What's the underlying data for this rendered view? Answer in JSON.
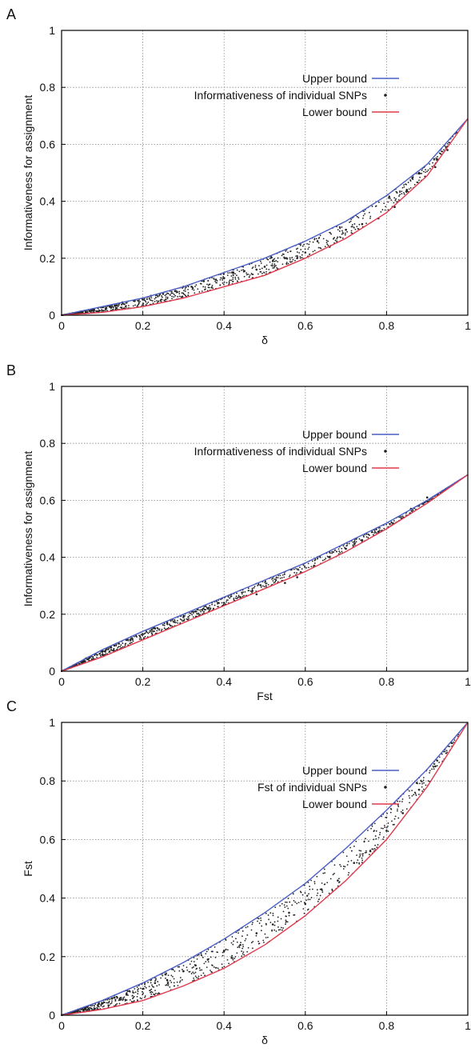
{
  "figure": {
    "colors": {
      "upper": "#4a5fc4",
      "lower": "#e03a4c",
      "points": "#222222",
      "grid": "#8a8a8a",
      "axis": "#000000"
    }
  },
  "chart_data": [
    {
      "panel": "A",
      "type": "scatter",
      "xlabel": "δ",
      "ylabel": "Informativeness for assignment",
      "xlim": [
        0,
        1
      ],
      "ylim": [
        0,
        1
      ],
      "xticks": [
        0,
        0.2,
        0.4,
        0.6,
        0.8,
        1
      ],
      "yticks": [
        0,
        0.2,
        0.4,
        0.6,
        0.8,
        1
      ],
      "xticklabels": [
        "0",
        "0.2",
        "0.4",
        "0.6",
        "0.8",
        "1"
      ],
      "yticklabels": [
        "0",
        "0.2",
        "0.4",
        "0.6",
        "0.8",
        "1"
      ],
      "grid": true,
      "legend_position": "top-right",
      "series": [
        {
          "name": "Upper bound",
          "kind": "line",
          "color": "#4a5fc4",
          "x": [
            0,
            0.1,
            0.2,
            0.3,
            0.4,
            0.5,
            0.6,
            0.7,
            0.8,
            0.9,
            1.0
          ],
          "y": [
            0,
            0.03,
            0.06,
            0.1,
            0.15,
            0.2,
            0.26,
            0.33,
            0.42,
            0.53,
            0.69
          ]
        },
        {
          "name": "Informativeness of individual SNPs",
          "kind": "points",
          "color": "#222222",
          "x": [
            0.02,
            0.05,
            0.08,
            0.1,
            0.12,
            0.15,
            0.18,
            0.2,
            0.22,
            0.25,
            0.28,
            0.3,
            0.32,
            0.35,
            0.38,
            0.4,
            0.42,
            0.45,
            0.48,
            0.5,
            0.52,
            0.55,
            0.58,
            0.6,
            0.63,
            0.66,
            0.7,
            0.74,
            0.78,
            0.82,
            0.85,
            0.88,
            0.92,
            0.95
          ],
          "y": [
            0.005,
            0.012,
            0.02,
            0.028,
            0.03,
            0.045,
            0.05,
            0.055,
            0.068,
            0.075,
            0.085,
            0.1,
            0.1,
            0.12,
            0.125,
            0.13,
            0.15,
            0.155,
            0.16,
            0.17,
            0.19,
            0.2,
            0.2,
            0.22,
            0.26,
            0.24,
            0.3,
            0.32,
            0.34,
            0.38,
            0.44,
            0.5,
            0.52,
            0.58
          ]
        },
        {
          "name": "Lower bound",
          "kind": "line",
          "color": "#e03a4c",
          "x": [
            0,
            0.1,
            0.2,
            0.3,
            0.4,
            0.5,
            0.6,
            0.7,
            0.8,
            0.9,
            1.0
          ],
          "y": [
            0,
            0.01,
            0.03,
            0.06,
            0.1,
            0.14,
            0.2,
            0.27,
            0.36,
            0.49,
            0.69
          ]
        }
      ]
    },
    {
      "panel": "B",
      "type": "scatter",
      "xlabel": "Fst",
      "ylabel": "Informativeness for assignment",
      "xlim": [
        0,
        1
      ],
      "ylim": [
        0,
        1
      ],
      "xticks": [
        0,
        0.2,
        0.4,
        0.6,
        0.8,
        1
      ],
      "yticks": [
        0,
        0.2,
        0.4,
        0.6,
        0.8,
        1
      ],
      "xticklabels": [
        "0",
        "0.2",
        "0.4",
        "0.6",
        "0.8",
        "1"
      ],
      "yticklabels": [
        "0",
        "0.2",
        "0.4",
        "0.6",
        "0.8",
        "1"
      ],
      "grid": true,
      "legend_position": "top-right",
      "series": [
        {
          "name": "Upper bound",
          "kind": "line",
          "color": "#4a5fc4",
          "x": [
            0,
            0.1,
            0.2,
            0.3,
            0.4,
            0.5,
            0.6,
            0.7,
            0.8,
            0.9,
            1.0
          ],
          "y": [
            0,
            0.075,
            0.14,
            0.2,
            0.26,
            0.32,
            0.38,
            0.45,
            0.52,
            0.6,
            0.69
          ]
        },
        {
          "name": "Informativeness of individual SNPs",
          "kind": "points",
          "color": "#222222",
          "x": [
            0.03,
            0.06,
            0.1,
            0.13,
            0.16,
            0.2,
            0.23,
            0.26,
            0.3,
            0.33,
            0.36,
            0.4,
            0.44,
            0.48,
            0.55,
            0.58,
            0.63,
            0.7,
            0.74,
            0.78,
            0.86,
            0.9
          ],
          "y": [
            0.02,
            0.045,
            0.07,
            0.09,
            0.11,
            0.13,
            0.15,
            0.17,
            0.19,
            0.21,
            0.22,
            0.24,
            0.26,
            0.27,
            0.31,
            0.33,
            0.4,
            0.43,
            0.46,
            0.49,
            0.57,
            0.61
          ]
        },
        {
          "name": "Lower bound",
          "kind": "line",
          "color": "#e03a4c",
          "x": [
            0,
            0.1,
            0.2,
            0.3,
            0.4,
            0.5,
            0.6,
            0.7,
            0.8,
            0.9,
            1.0
          ],
          "y": [
            0,
            0.05,
            0.11,
            0.17,
            0.23,
            0.29,
            0.35,
            0.42,
            0.5,
            0.59,
            0.69
          ]
        }
      ]
    },
    {
      "panel": "C",
      "type": "scatter",
      "xlabel": "δ",
      "ylabel": "Fst",
      "xlim": [
        0,
        1
      ],
      "ylim": [
        0,
        1
      ],
      "xticks": [
        0,
        0.2,
        0.4,
        0.6,
        0.8,
        1
      ],
      "yticks": [
        0,
        0.2,
        0.4,
        0.6,
        0.8,
        1
      ],
      "xticklabels": [
        "0",
        "0.2",
        "0.4",
        "0.6",
        "0.8",
        "1"
      ],
      "yticklabels": [
        "0",
        "0.2",
        "0.4",
        "0.6",
        "0.8",
        "1"
      ],
      "grid": true,
      "legend_position": "top-right",
      "series": [
        {
          "name": "Upper bound",
          "kind": "line",
          "color": "#4a5fc4",
          "x": [
            0,
            0.1,
            0.2,
            0.3,
            0.4,
            0.5,
            0.6,
            0.7,
            0.8,
            0.9,
            1.0
          ],
          "y": [
            0,
            0.05,
            0.11,
            0.18,
            0.26,
            0.35,
            0.45,
            0.57,
            0.7,
            0.84,
            1.0
          ]
        },
        {
          "name": "Fst of individual SNPs",
          "kind": "points",
          "color": "#222222",
          "x": [
            0.03,
            0.06,
            0.1,
            0.13,
            0.16,
            0.2,
            0.23,
            0.26,
            0.3,
            0.33,
            0.36,
            0.4,
            0.44,
            0.48,
            0.52,
            0.56,
            0.6,
            0.64,
            0.68,
            0.72,
            0.76,
            0.8,
            0.84,
            0.88,
            0.92,
            0.96
          ],
          "y": [
            0.01,
            0.02,
            0.04,
            0.06,
            0.07,
            0.09,
            0.11,
            0.12,
            0.15,
            0.17,
            0.19,
            0.22,
            0.24,
            0.28,
            0.31,
            0.35,
            0.38,
            0.43,
            0.46,
            0.52,
            0.56,
            0.63,
            0.69,
            0.77,
            0.85,
            0.93
          ]
        },
        {
          "name": "Lower bound",
          "kind": "line",
          "color": "#e03a4c",
          "x": [
            0,
            0.1,
            0.2,
            0.3,
            0.4,
            0.5,
            0.6,
            0.7,
            0.8,
            0.9,
            1.0
          ],
          "y": [
            0,
            0.02,
            0.05,
            0.1,
            0.16,
            0.24,
            0.34,
            0.46,
            0.6,
            0.78,
            1.0
          ]
        }
      ]
    }
  ]
}
